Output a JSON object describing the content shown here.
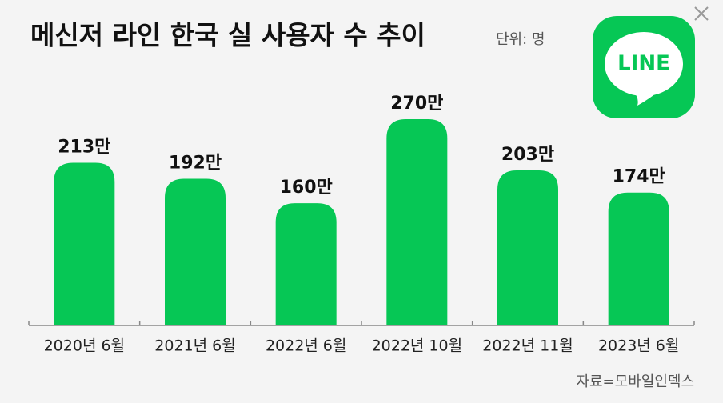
{
  "chart_data": {
    "type": "bar",
    "title": "메신저 라인 한국 실 사용자 수 추이",
    "subtitle": "단위: 명",
    "source": "자료=모바일인덱스",
    "categories": [
      "2020년 6월",
      "2021년 6월",
      "2022년 6월",
      "2022년 10월",
      "2022년 11월",
      "2023년 6월"
    ],
    "values": [
      213,
      192,
      160,
      270,
      203,
      174
    ],
    "value_labels": [
      "213만",
      "192만",
      "160만",
      "270만",
      "203만",
      "174만"
    ],
    "color": "#06c755"
  },
  "logo_text": "LINE"
}
